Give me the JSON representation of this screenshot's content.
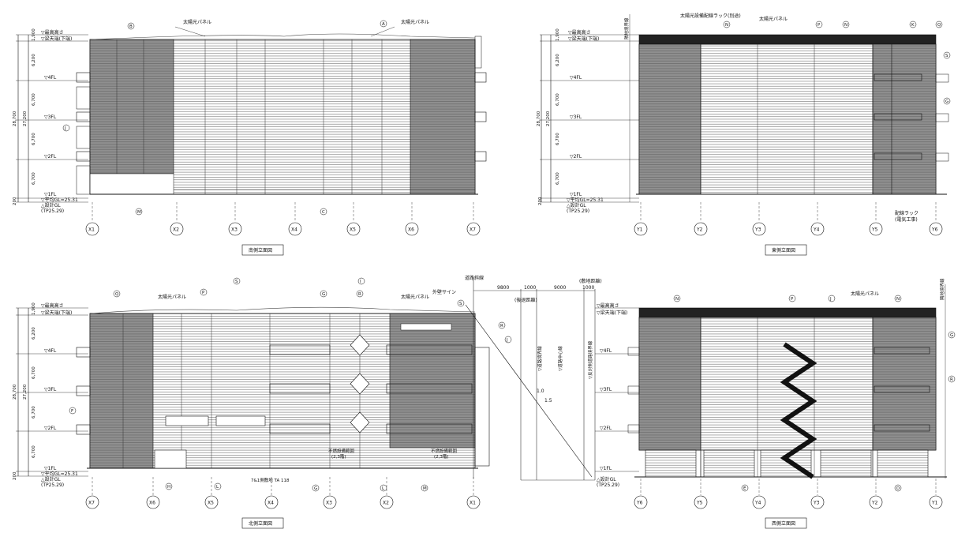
{
  "colors": {
    "ink": "#111111",
    "shade": "#8a8a8a",
    "shade_dark": "#777777",
    "paper": "#ffffff"
  },
  "labels": {
    "solar_panel": "太陽光パネル",
    "solar_rack": "太陽光設備配線ラック(別途)",
    "roof_top": "▽最高高さ",
    "roof_top_alt": "▽最高高さ",
    "parapet": "▽梁天端(下端)",
    "fl4": "▽4FL",
    "fl3": "▽3FL",
    "fl2": "▽2FL",
    "fl1": "▽1FL",
    "avg_gl": "▽平均GL=25.31",
    "design_gl": "△設計GL",
    "tp": "(TP25.29)",
    "boundary": "隣地境界線",
    "road_boundary": "道路斜線",
    "ext_sign": "外壁サイン",
    "wiring_rack": "配線ラック",
    "wiring_rack_sub": "(電気工事)",
    "non_flam_1": "不燃設備範囲",
    "non_flam_1_sub": "(2,3階)",
    "non_flam_2": "不燃設備範囲",
    "non_flam_2_sub": "(2,3階)",
    "ground_note": "7&1側敷地 TA 118"
  },
  "dims": {
    "top": "1,900",
    "f4": "6,200",
    "f3": "6,700",
    "f2": "6,700",
    "f1": "6,700",
    "base": "200",
    "overall": "28,700",
    "sub": "27,200",
    "overall_label": "28,700",
    "d9800": "9800",
    "d1000": "1000",
    "d9000": "9000",
    "d1000b": "1000",
    "setback": "(後退距離)",
    "road_dist": "(敷地距離)",
    "road_center": "▽道路中心線",
    "road_boundary_v": "▽道路境界線",
    "road_opposite": "▽反対側道路境界線",
    "slope_a": "1.0",
    "slope_b": "1.5"
  },
  "grids": {
    "south": [
      "X1",
      "X2",
      "X3",
      "X4",
      "X5",
      "X6",
      "X7"
    ],
    "east": [
      "Y1",
      "Y2",
      "Y3",
      "Y4",
      "Y5",
      "Y6"
    ],
    "north": [
      "X7",
      "X6",
      "X5",
      "X4",
      "X3",
      "X2",
      "X1"
    ],
    "west": [
      "Y6",
      "Y5",
      "Y4",
      "Y3",
      "Y2",
      "Y1"
    ]
  },
  "tags": {
    "south": [
      "B",
      "A",
      "J",
      "M",
      "C"
    ],
    "east": [
      "N",
      "P",
      "N",
      "K",
      "Q",
      "S",
      "G"
    ],
    "north": [
      "Q",
      "P",
      "S",
      "G",
      "I",
      "R",
      "S",
      "R",
      "J",
      "F",
      "H",
      "L",
      "G",
      "L",
      "M"
    ],
    "west": [
      "N",
      "P",
      "J",
      "N",
      "G",
      "R",
      "E",
      "D"
    ]
  },
  "titles": {
    "south": "南側立面図",
    "east": "東側立面図",
    "north": "北側立面図",
    "west": "西側立面図"
  }
}
